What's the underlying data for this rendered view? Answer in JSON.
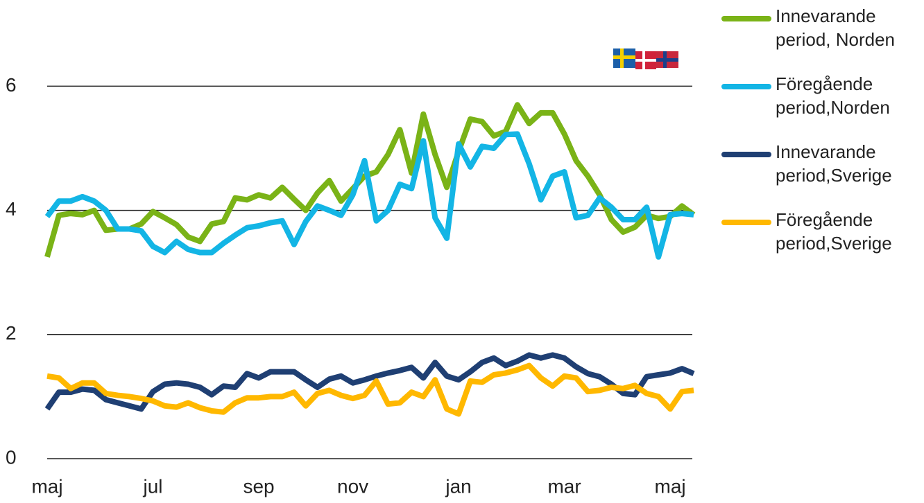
{
  "chart_data": {
    "type": "line",
    "categories": [
      "maj",
      null,
      null,
      null,
      null,
      null,
      null,
      null,
      null,
      "jul",
      null,
      null,
      null,
      null,
      null,
      null,
      null,
      null,
      "sep",
      null,
      null,
      null,
      null,
      null,
      null,
      null,
      "nov",
      null,
      null,
      null,
      null,
      null,
      null,
      null,
      null,
      "jan",
      null,
      null,
      null,
      null,
      null,
      null,
      null,
      null,
      "mar",
      null,
      null,
      null,
      null,
      null,
      null,
      null,
      null,
      "maj",
      null,
      null
    ],
    "series": [
      {
        "name": "Innevarande period, Norden",
        "color": "#7ab317",
        "values": [
          3.25,
          3.92,
          3.95,
          3.93,
          4.0,
          3.68,
          3.7,
          3.7,
          3.78,
          3.98,
          3.88,
          3.77,
          3.57,
          3.5,
          3.78,
          3.82,
          4.2,
          4.17,
          4.25,
          4.2,
          4.37,
          4.18,
          4.0,
          4.28,
          4.48,
          4.15,
          4.35,
          4.55,
          4.62,
          4.9,
          5.3,
          4.6,
          5.55,
          4.9,
          4.37,
          4.95,
          5.47,
          5.43,
          5.2,
          5.27,
          5.7,
          5.4,
          5.57,
          5.57,
          5.23,
          4.8,
          4.55,
          4.25,
          3.85,
          3.65,
          3.73,
          3.92,
          3.87,
          3.9,
          4.07,
          3.93
        ]
      },
      {
        "name": "Föregående period,Norden",
        "color": "#13b5e5",
        "values": [
          3.9,
          4.15,
          4.15,
          4.22,
          4.15,
          4.0,
          3.7,
          3.7,
          3.67,
          3.42,
          3.32,
          3.5,
          3.37,
          3.32,
          3.32,
          3.47,
          3.6,
          3.72,
          3.75,
          3.8,
          3.83,
          3.45,
          3.82,
          4.07,
          4.0,
          3.92,
          4.25,
          4.8,
          3.83,
          4.0,
          4.42,
          4.35,
          5.12,
          3.88,
          3.55,
          5.07,
          4.7,
          5.03,
          5.0,
          5.22,
          5.23,
          4.75,
          4.17,
          4.55,
          4.62,
          3.88,
          3.92,
          4.2,
          4.05,
          3.85,
          3.85,
          4.05,
          3.25,
          3.93,
          3.95,
          3.93
        ]
      },
      {
        "name": "Innevarande period,Sverige",
        "color": "#1f3f73",
        "values": [
          0.8,
          1.07,
          1.07,
          1.12,
          1.1,
          0.95,
          0.9,
          0.85,
          0.8,
          1.08,
          1.2,
          1.22,
          1.2,
          1.15,
          1.03,
          1.17,
          1.15,
          1.37,
          1.3,
          1.4,
          1.4,
          1.4,
          1.27,
          1.15,
          1.28,
          1.33,
          1.22,
          1.27,
          1.33,
          1.38,
          1.42,
          1.47,
          1.3,
          1.55,
          1.33,
          1.27,
          1.4,
          1.55,
          1.62,
          1.5,
          1.57,
          1.67,
          1.62,
          1.67,
          1.62,
          1.48,
          1.37,
          1.32,
          1.2,
          1.05,
          1.03,
          1.32,
          1.35,
          1.38,
          1.45,
          1.37
        ]
      },
      {
        "name": "Föregående period,Sverige",
        "color": "#ffb800",
        "values": [
          1.33,
          1.3,
          1.13,
          1.22,
          1.22,
          1.05,
          1.02,
          1.0,
          0.97,
          0.93,
          0.85,
          0.83,
          0.9,
          0.82,
          0.77,
          0.75,
          0.9,
          0.98,
          0.98,
          1.0,
          1.0,
          1.07,
          0.85,
          1.05,
          1.1,
          1.02,
          0.97,
          1.02,
          1.25,
          0.88,
          0.9,
          1.07,
          1.0,
          1.27,
          0.8,
          0.72,
          1.25,
          1.23,
          1.35,
          1.38,
          1.43,
          1.5,
          1.3,
          1.17,
          1.33,
          1.3,
          1.08,
          1.1,
          1.15,
          1.13,
          1.18,
          1.05,
          1.0,
          0.8,
          1.08,
          1.1
        ]
      }
    ],
    "ylim": [
      0,
      7
    ],
    "yticks": [
      0,
      2,
      4,
      6
    ],
    "grid": true
  }
}
